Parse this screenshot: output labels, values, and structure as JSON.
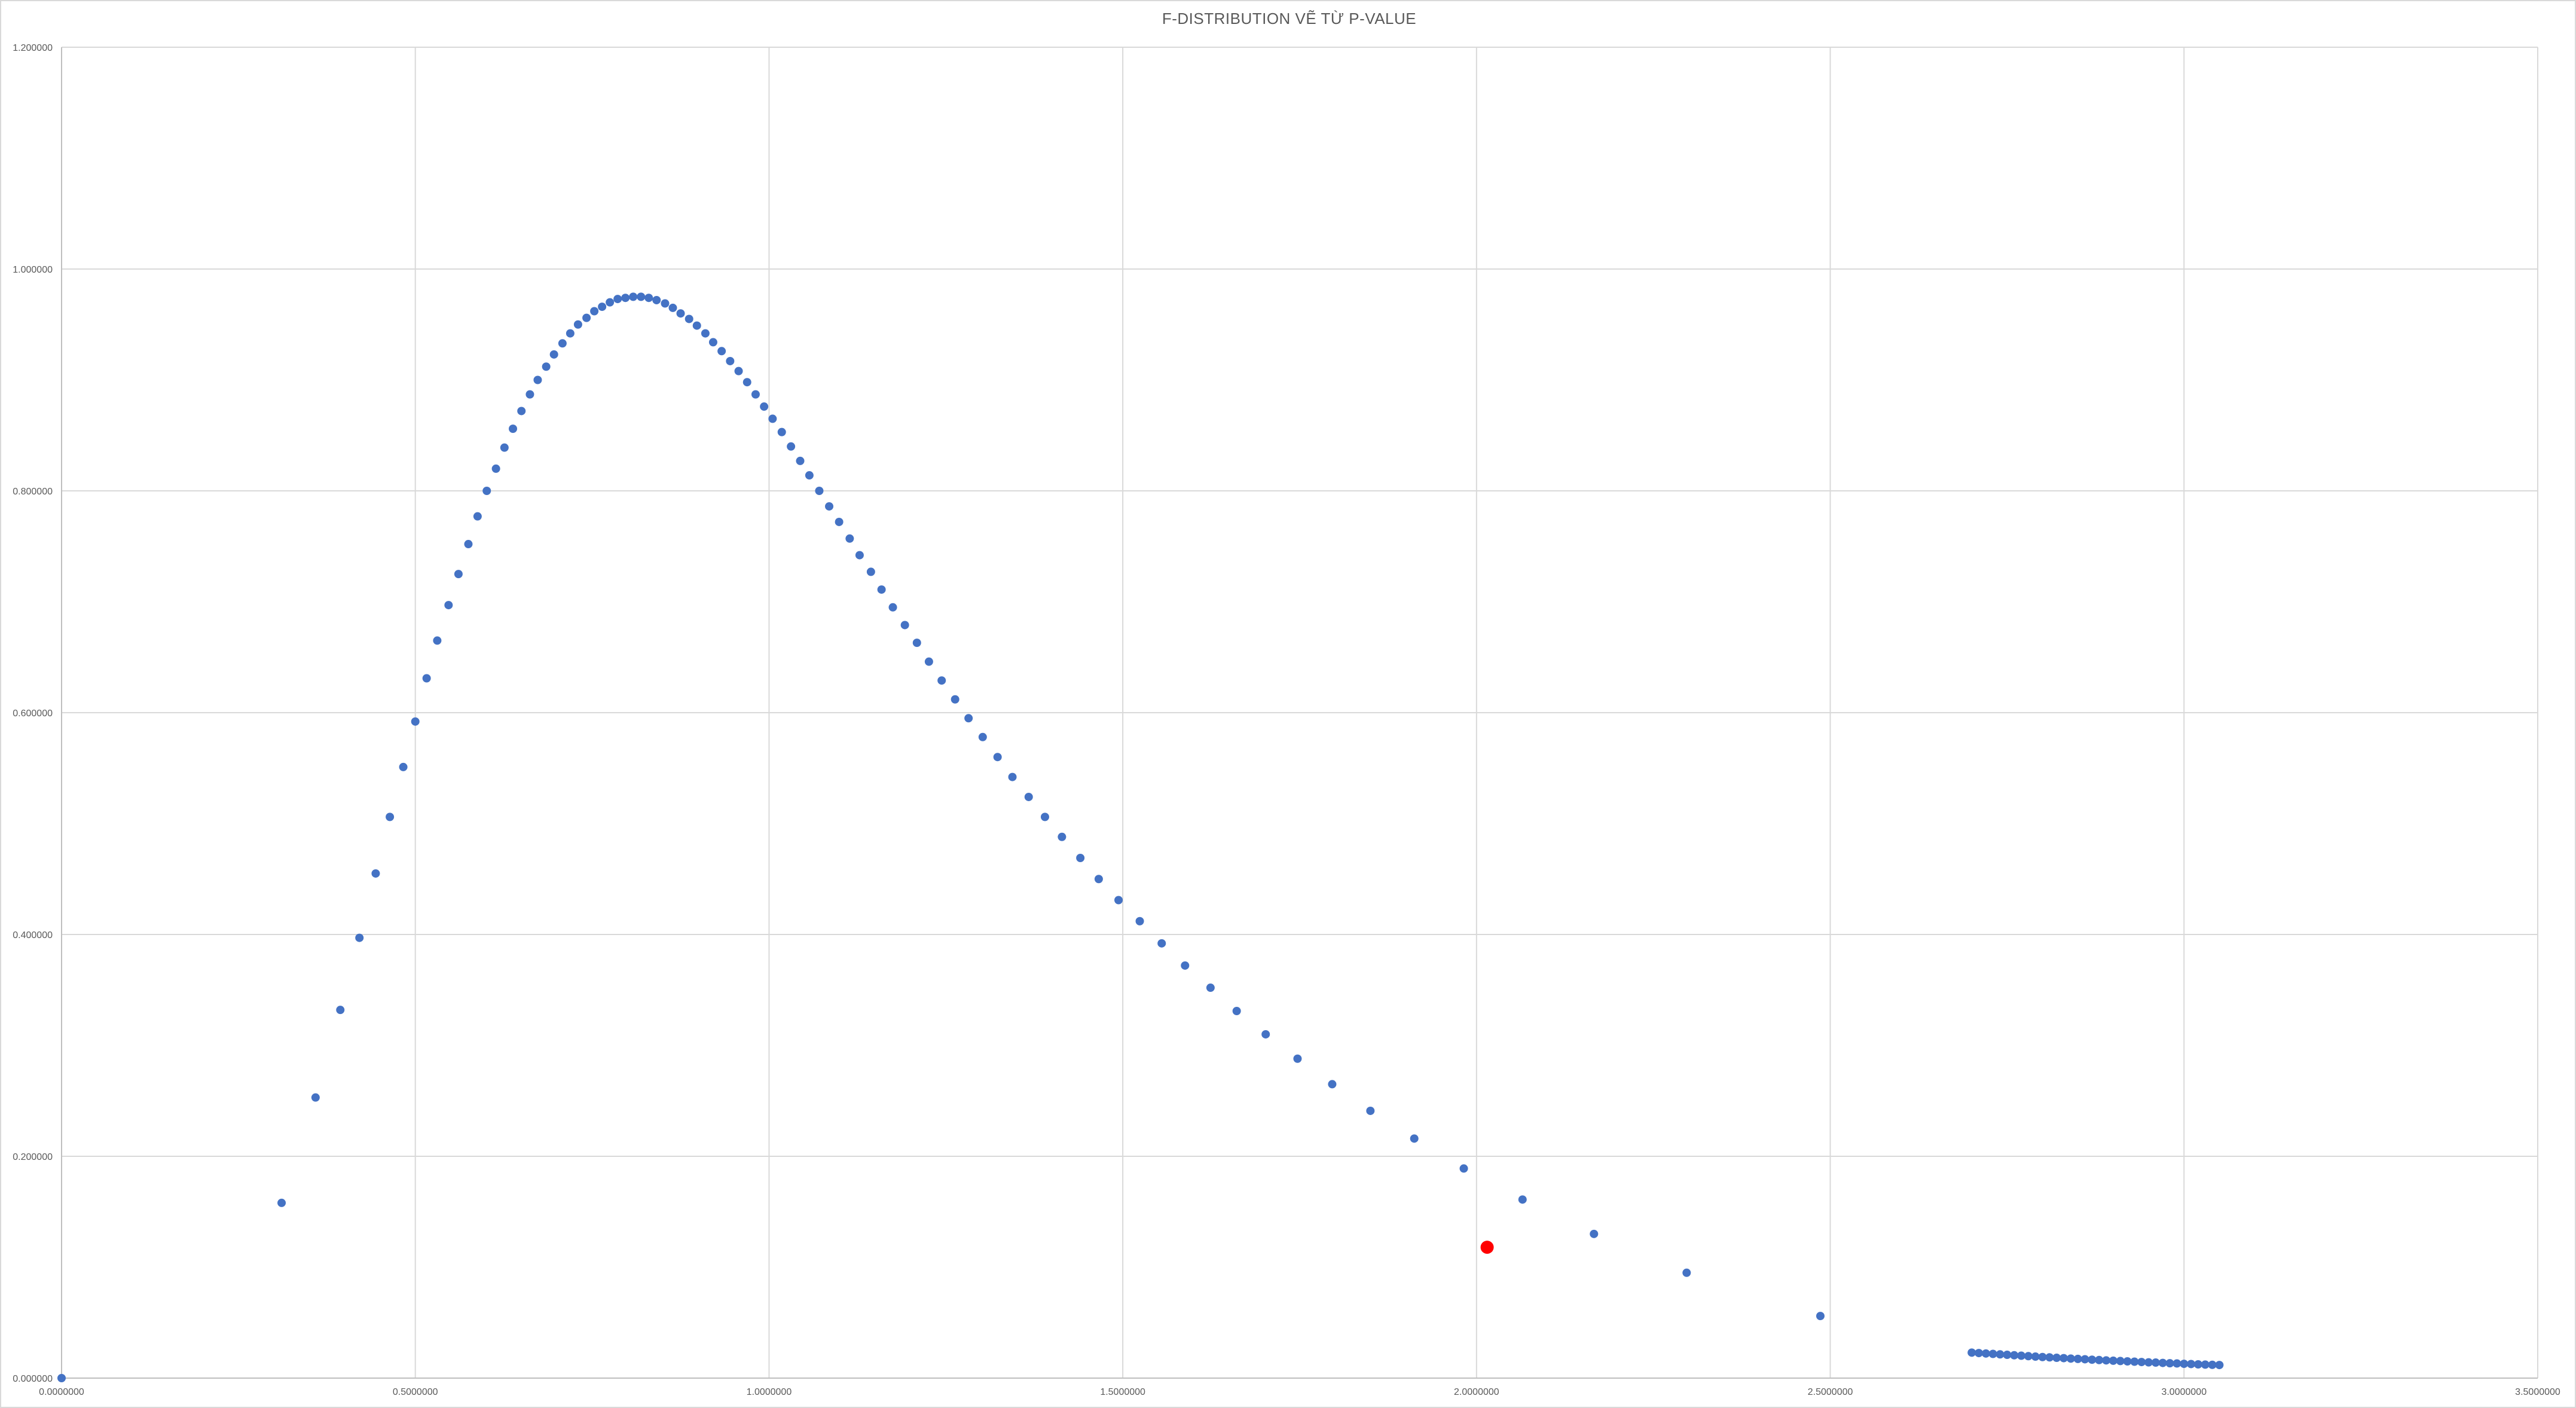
{
  "chart_data": {
    "type": "scatter",
    "title": "F-DISTRIBUTION VẼ TỪ P-VALUE",
    "xlabel": "",
    "ylabel": "",
    "xlim": [
      0,
      3.5
    ],
    "ylim": [
      0,
      1.2
    ],
    "grid": true,
    "legend": "none",
    "x_ticks": [
      "0.0000000",
      "0.5000000",
      "1.0000000",
      "1.5000000",
      "2.0000000",
      "2.5000000",
      "3.0000000",
      "3.5000000"
    ],
    "y_ticks": [
      "0.000000",
      "0.200000",
      "0.400000",
      "0.600000",
      "0.800000",
      "1.000000",
      "1.200000"
    ],
    "colors": {
      "series": "#4472c4",
      "highlight": "#ff0000",
      "grid": "#d9d9d9",
      "axis": "#bfbfbf",
      "text": "#595959"
    },
    "series": [
      {
        "color": "#4472c4",
        "points": [
          [
            0.0,
            0.0
          ],
          [
            0.311,
            0.158
          ],
          [
            0.359,
            0.253
          ],
          [
            0.394,
            0.332
          ],
          [
            0.421,
            0.397
          ],
          [
            0.444,
            0.455
          ],
          [
            0.464,
            0.506
          ],
          [
            0.483,
            0.551
          ],
          [
            0.5,
            0.592
          ],
          [
            0.516,
            0.631
          ],
          [
            0.531,
            0.665
          ],
          [
            0.547,
            0.697
          ],
          [
            0.561,
            0.725
          ],
          [
            0.575,
            0.752
          ],
          [
            0.588,
            0.777
          ],
          [
            0.601,
            0.8
          ],
          [
            0.614,
            0.82
          ],
          [
            0.626,
            0.839
          ],
          [
            0.638,
            0.856
          ],
          [
            0.65,
            0.872
          ],
          [
            0.662,
            0.887
          ],
          [
            0.673,
            0.9
          ],
          [
            0.685,
            0.912
          ],
          [
            0.696,
            0.923
          ],
          [
            0.708,
            0.933
          ],
          [
            0.719,
            0.942
          ],
          [
            0.73,
            0.95
          ],
          [
            0.742,
            0.956
          ],
          [
            0.753,
            0.962
          ],
          [
            0.764,
            0.966
          ],
          [
            0.775,
            0.97
          ],
          [
            0.786,
            0.973
          ],
          [
            0.797,
            0.974
          ],
          [
            0.808,
            0.975
          ],
          [
            0.819,
            0.975
          ],
          [
            0.83,
            0.974
          ],
          [
            0.841,
            0.972
          ],
          [
            0.853,
            0.969
          ],
          [
            0.864,
            0.965
          ],
          [
            0.875,
            0.96
          ],
          [
            0.887,
            0.955
          ],
          [
            0.898,
            0.949
          ],
          [
            0.91,
            0.942
          ],
          [
            0.921,
            0.934
          ],
          [
            0.933,
            0.926
          ],
          [
            0.945,
            0.917
          ],
          [
            0.957,
            0.908
          ],
          [
            0.969,
            0.898
          ],
          [
            0.981,
            0.887
          ],
          [
            0.993,
            0.876
          ],
          [
            1.005,
            0.865
          ],
          [
            1.018,
            0.853
          ],
          [
            1.031,
            0.84
          ],
          [
            1.044,
            0.827
          ],
          [
            1.057,
            0.814
          ],
          [
            1.071,
            0.8
          ],
          [
            1.085,
            0.786
          ],
          [
            1.099,
            0.772
          ],
          [
            1.114,
            0.757
          ],
          [
            1.128,
            0.742
          ],
          [
            1.144,
            0.727
          ],
          [
            1.159,
            0.711
          ],
          [
            1.175,
            0.695
          ],
          [
            1.192,
            0.679
          ],
          [
            1.209,
            0.663
          ],
          [
            1.226,
            0.646
          ],
          [
            1.244,
            0.629
          ],
          [
            1.263,
            0.612
          ],
          [
            1.282,
            0.595
          ],
          [
            1.302,
            0.578
          ],
          [
            1.323,
            0.56
          ],
          [
            1.344,
            0.542
          ],
          [
            1.367,
            0.524
          ],
          [
            1.39,
            0.506
          ],
          [
            1.414,
            0.488
          ],
          [
            1.44,
            0.469
          ],
          [
            1.466,
            0.45
          ],
          [
            1.494,
            0.431
          ],
          [
            1.524,
            0.412
          ],
          [
            1.555,
            0.392
          ],
          [
            1.588,
            0.372
          ],
          [
            1.624,
            0.352
          ],
          [
            1.661,
            0.331
          ],
          [
            1.702,
            0.31
          ],
          [
            1.747,
            0.288
          ],
          [
            1.796,
            0.265
          ],
          [
            1.85,
            0.241
          ],
          [
            1.912,
            0.216
          ],
          [
            1.982,
            0.189
          ],
          [
            2.065,
            0.161
          ],
          [
            2.166,
            0.13
          ],
          [
            2.297,
            0.095
          ],
          [
            2.486,
            0.056
          ],
          [
            2.7,
            0.023
          ],
          [
            2.71,
            0.0226
          ],
          [
            2.72,
            0.0222
          ],
          [
            2.73,
            0.0218
          ],
          [
            2.74,
            0.0214
          ],
          [
            2.75,
            0.021
          ],
          [
            2.76,
            0.0206
          ],
          [
            2.77,
            0.0202
          ],
          [
            2.78,
            0.0198
          ],
          [
            2.79,
            0.0194
          ],
          [
            2.8,
            0.019
          ],
          [
            2.81,
            0.0187
          ],
          [
            2.82,
            0.0183
          ],
          [
            2.83,
            0.018
          ],
          [
            2.84,
            0.0176
          ],
          [
            2.85,
            0.0173
          ],
          [
            2.86,
            0.017
          ],
          [
            2.87,
            0.0166
          ],
          [
            2.88,
            0.0163
          ],
          [
            2.89,
            0.016
          ],
          [
            2.9,
            0.0157
          ],
          [
            2.91,
            0.0154
          ],
          [
            2.92,
            0.0151
          ],
          [
            2.93,
            0.0148
          ],
          [
            2.94,
            0.0145
          ],
          [
            2.95,
            0.0142
          ],
          [
            2.96,
            0.014
          ],
          [
            2.97,
            0.0137
          ],
          [
            2.98,
            0.0134
          ],
          [
            2.99,
            0.0132
          ],
          [
            3.0,
            0.0129
          ],
          [
            3.01,
            0.0127
          ],
          [
            3.02,
            0.0124
          ],
          [
            3.03,
            0.0122
          ],
          [
            3.04,
            0.012
          ],
          [
            3.05,
            0.0118
          ]
        ]
      },
      {
        "color": "#ff0000",
        "points": [
          [
            2.015,
            0.118
          ]
        ]
      }
    ]
  }
}
